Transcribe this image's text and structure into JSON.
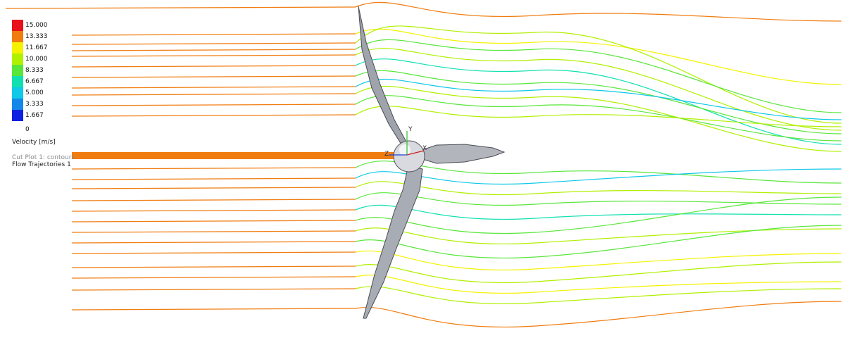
{
  "legend": {
    "title": "Velocity [m/s]",
    "ticks": [
      "15.000",
      "13.333",
      "11.667",
      "10.000",
      "8.333",
      "6.667",
      "5.000",
      "3.333",
      "1.667",
      "0"
    ],
    "colors": [
      "#e8101a",
      "#f07c10",
      "#f4f200",
      "#b0f000",
      "#58e63a",
      "#10e0b0",
      "#10c8e8",
      "#1488e8",
      "#0e20e0"
    ]
  },
  "plots": {
    "cut_plot": "Cut Plot 1: contours",
    "flow_trajectories": "Flow Trajectories 1"
  },
  "axes": {
    "y": "Y",
    "z": "Z",
    "x": "X"
  },
  "colors": {
    "inflow": "#f07c10",
    "hub_axis": "#f07c10",
    "blade_fill": "#a8acb4",
    "blade_edge": "#505258"
  }
}
